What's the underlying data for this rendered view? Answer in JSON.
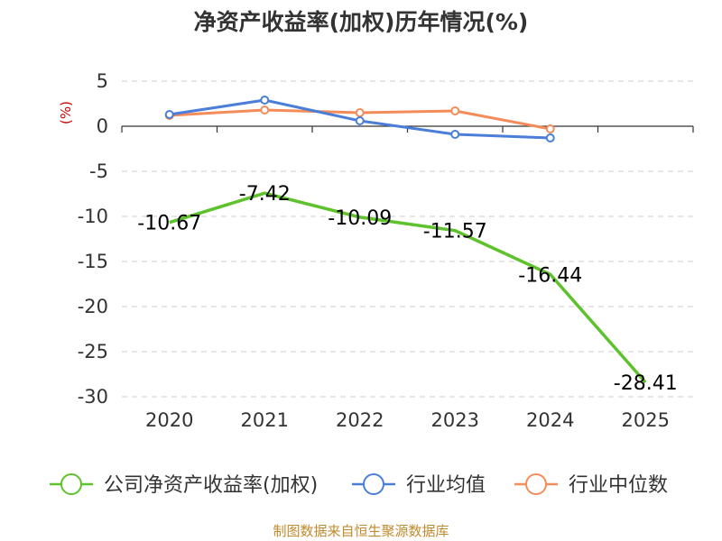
{
  "chart_data": {
    "type": "line",
    "title": "净资产收益率(加权)历年情况(%)",
    "xlabel": "",
    "ylabel": "(%)",
    "categories": [
      "2020",
      "2021",
      "2022",
      "2023",
      "2024",
      "2025"
    ],
    "ylim": [
      -30,
      5
    ],
    "yticks": [
      5,
      0,
      -5,
      -10,
      -15,
      -20,
      -25,
      -30
    ],
    "grid": true,
    "legend_position": "bottom",
    "series": [
      {
        "name": "公司净资产收益率(加权)",
        "color": "#5dc22c",
        "values": [
          -10.67,
          -7.42,
          -10.09,
          -11.57,
          -16.44,
          -28.41
        ],
        "labels": [
          "-10.67",
          "-7.42",
          "-10.09",
          "-11.57",
          "-16.44",
          "-28.41"
        ]
      },
      {
        "name": "行业均值",
        "color": "#4a7ed8",
        "values": [
          1.3,
          2.9,
          0.6,
          -0.9,
          -1.3,
          null
        ]
      },
      {
        "name": "行业中位数",
        "color": "#f48c5a",
        "values": [
          1.2,
          1.8,
          1.5,
          1.7,
          -0.3,
          null
        ]
      }
    ],
    "source": "制图数据来自恒生聚源数据库"
  }
}
